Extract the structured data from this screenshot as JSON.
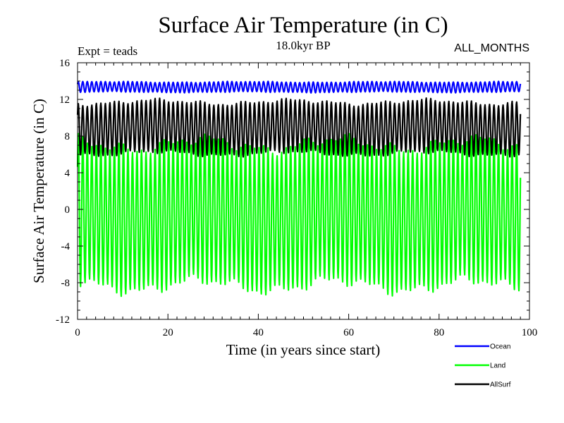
{
  "chart_data": {
    "type": "line",
    "title": "Surface Air Temperature (in C)",
    "subtitle": "18.0kyr BP",
    "expt_label": "Expt = teads",
    "months_label": "ALL_MONTHS",
    "xlabel": "Time (in years since start)",
    "ylabel": "Surface Air Temperature (in C)",
    "xlim": [
      0,
      100
    ],
    "ylim": [
      -12,
      16
    ],
    "x_ticks": [
      0,
      20,
      40,
      60,
      80,
      100
    ],
    "y_ticks": [
      -12,
      -8,
      -4,
      0,
      4,
      8,
      12,
      16
    ],
    "x_minor_step": 2,
    "y_minor_step": 1,
    "legend_position": "bottom-right",
    "series": [
      {
        "name": "Ocean",
        "color": "#0000ff",
        "mean": 13.35,
        "amplitude": 0.55,
        "cycles_per_year": 1,
        "x_start": 0,
        "x_end": 98
      },
      {
        "name": "Land",
        "color": "#00ff00",
        "mean": -0.6,
        "amplitude": 7.7,
        "cycles_per_year": 1,
        "x_start": 0,
        "x_end": 98
      },
      {
        "name": "AllSurf",
        "color": "#000000",
        "mean": 8.9,
        "amplitude": 2.8,
        "cycles_per_year": 1,
        "x_start": 0,
        "x_end": 98
      }
    ]
  }
}
